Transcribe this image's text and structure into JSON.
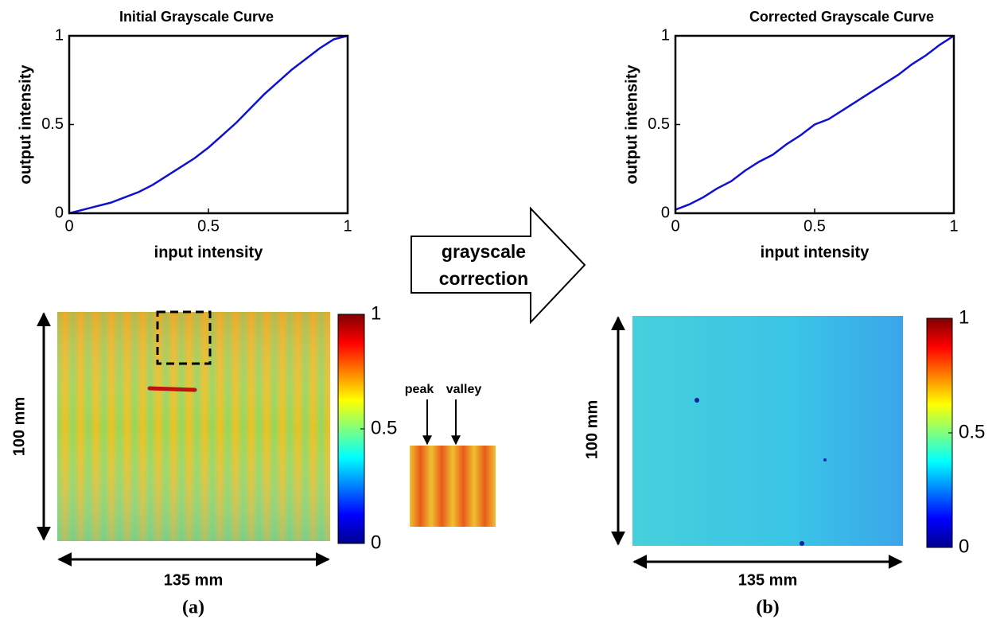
{
  "chart_data": [
    {
      "type": "line",
      "title": "Initial Grayscale Curve",
      "x_label": "input intensity",
      "y_label": "output intensity",
      "x": [
        0,
        0.05,
        0.1,
        0.15,
        0.2,
        0.25,
        0.3,
        0.35,
        0.4,
        0.45,
        0.5,
        0.55,
        0.6,
        0.65,
        0.7,
        0.75,
        0.8,
        0.85,
        0.9,
        0.95,
        1
      ],
      "values": [
        0,
        0.02,
        0.04,
        0.06,
        0.09,
        0.12,
        0.16,
        0.21,
        0.26,
        0.31,
        0.37,
        0.44,
        0.51,
        0.59,
        0.67,
        0.74,
        0.81,
        0.87,
        0.93,
        0.98,
        1
      ],
      "color": "#1010d0",
      "xlim": [
        0,
        1
      ],
      "ylim": [
        0,
        1
      ],
      "xticks": [
        0,
        0.5,
        1
      ],
      "yticks": [
        0,
        0.5,
        1
      ]
    },
    {
      "type": "line",
      "title": "Corrected Grayscale Curve",
      "x_label": "input intensity",
      "y_label": "output intensity",
      "x": [
        0,
        0.05,
        0.1,
        0.15,
        0.2,
        0.25,
        0.3,
        0.35,
        0.4,
        0.45,
        0.5,
        0.55,
        0.6,
        0.65,
        0.7,
        0.75,
        0.8,
        0.85,
        0.9,
        0.95,
        1
      ],
      "values": [
        0.02,
        0.05,
        0.09,
        0.14,
        0.18,
        0.24,
        0.29,
        0.33,
        0.39,
        0.44,
        0.5,
        0.53,
        0.58,
        0.63,
        0.68,
        0.73,
        0.78,
        0.84,
        0.89,
        0.95,
        1
      ],
      "color": "#1010d0",
      "xlim": [
        0,
        1
      ],
      "ylim": [
        0,
        1
      ],
      "xticks": [
        0,
        0.5,
        1
      ],
      "yticks": [
        0,
        0.5,
        1
      ]
    }
  ],
  "figure": {
    "arrow_label": [
      "grayscale",
      "correction"
    ],
    "inset_labels": [
      "peak",
      "valley"
    ],
    "panels": [
      {
        "label": "(a)",
        "height_label": "100 mm",
        "width_label": "135 mm",
        "clim": [
          0,
          1
        ],
        "colorbar_ticks": [
          0,
          0.5,
          1
        ]
      },
      {
        "label": "(b)",
        "height_label": "100 mm",
        "width_label": "135 mm",
        "clim": [
          0,
          1
        ],
        "colorbar_ticks": [
          0,
          0.5,
          1
        ]
      }
    ]
  }
}
